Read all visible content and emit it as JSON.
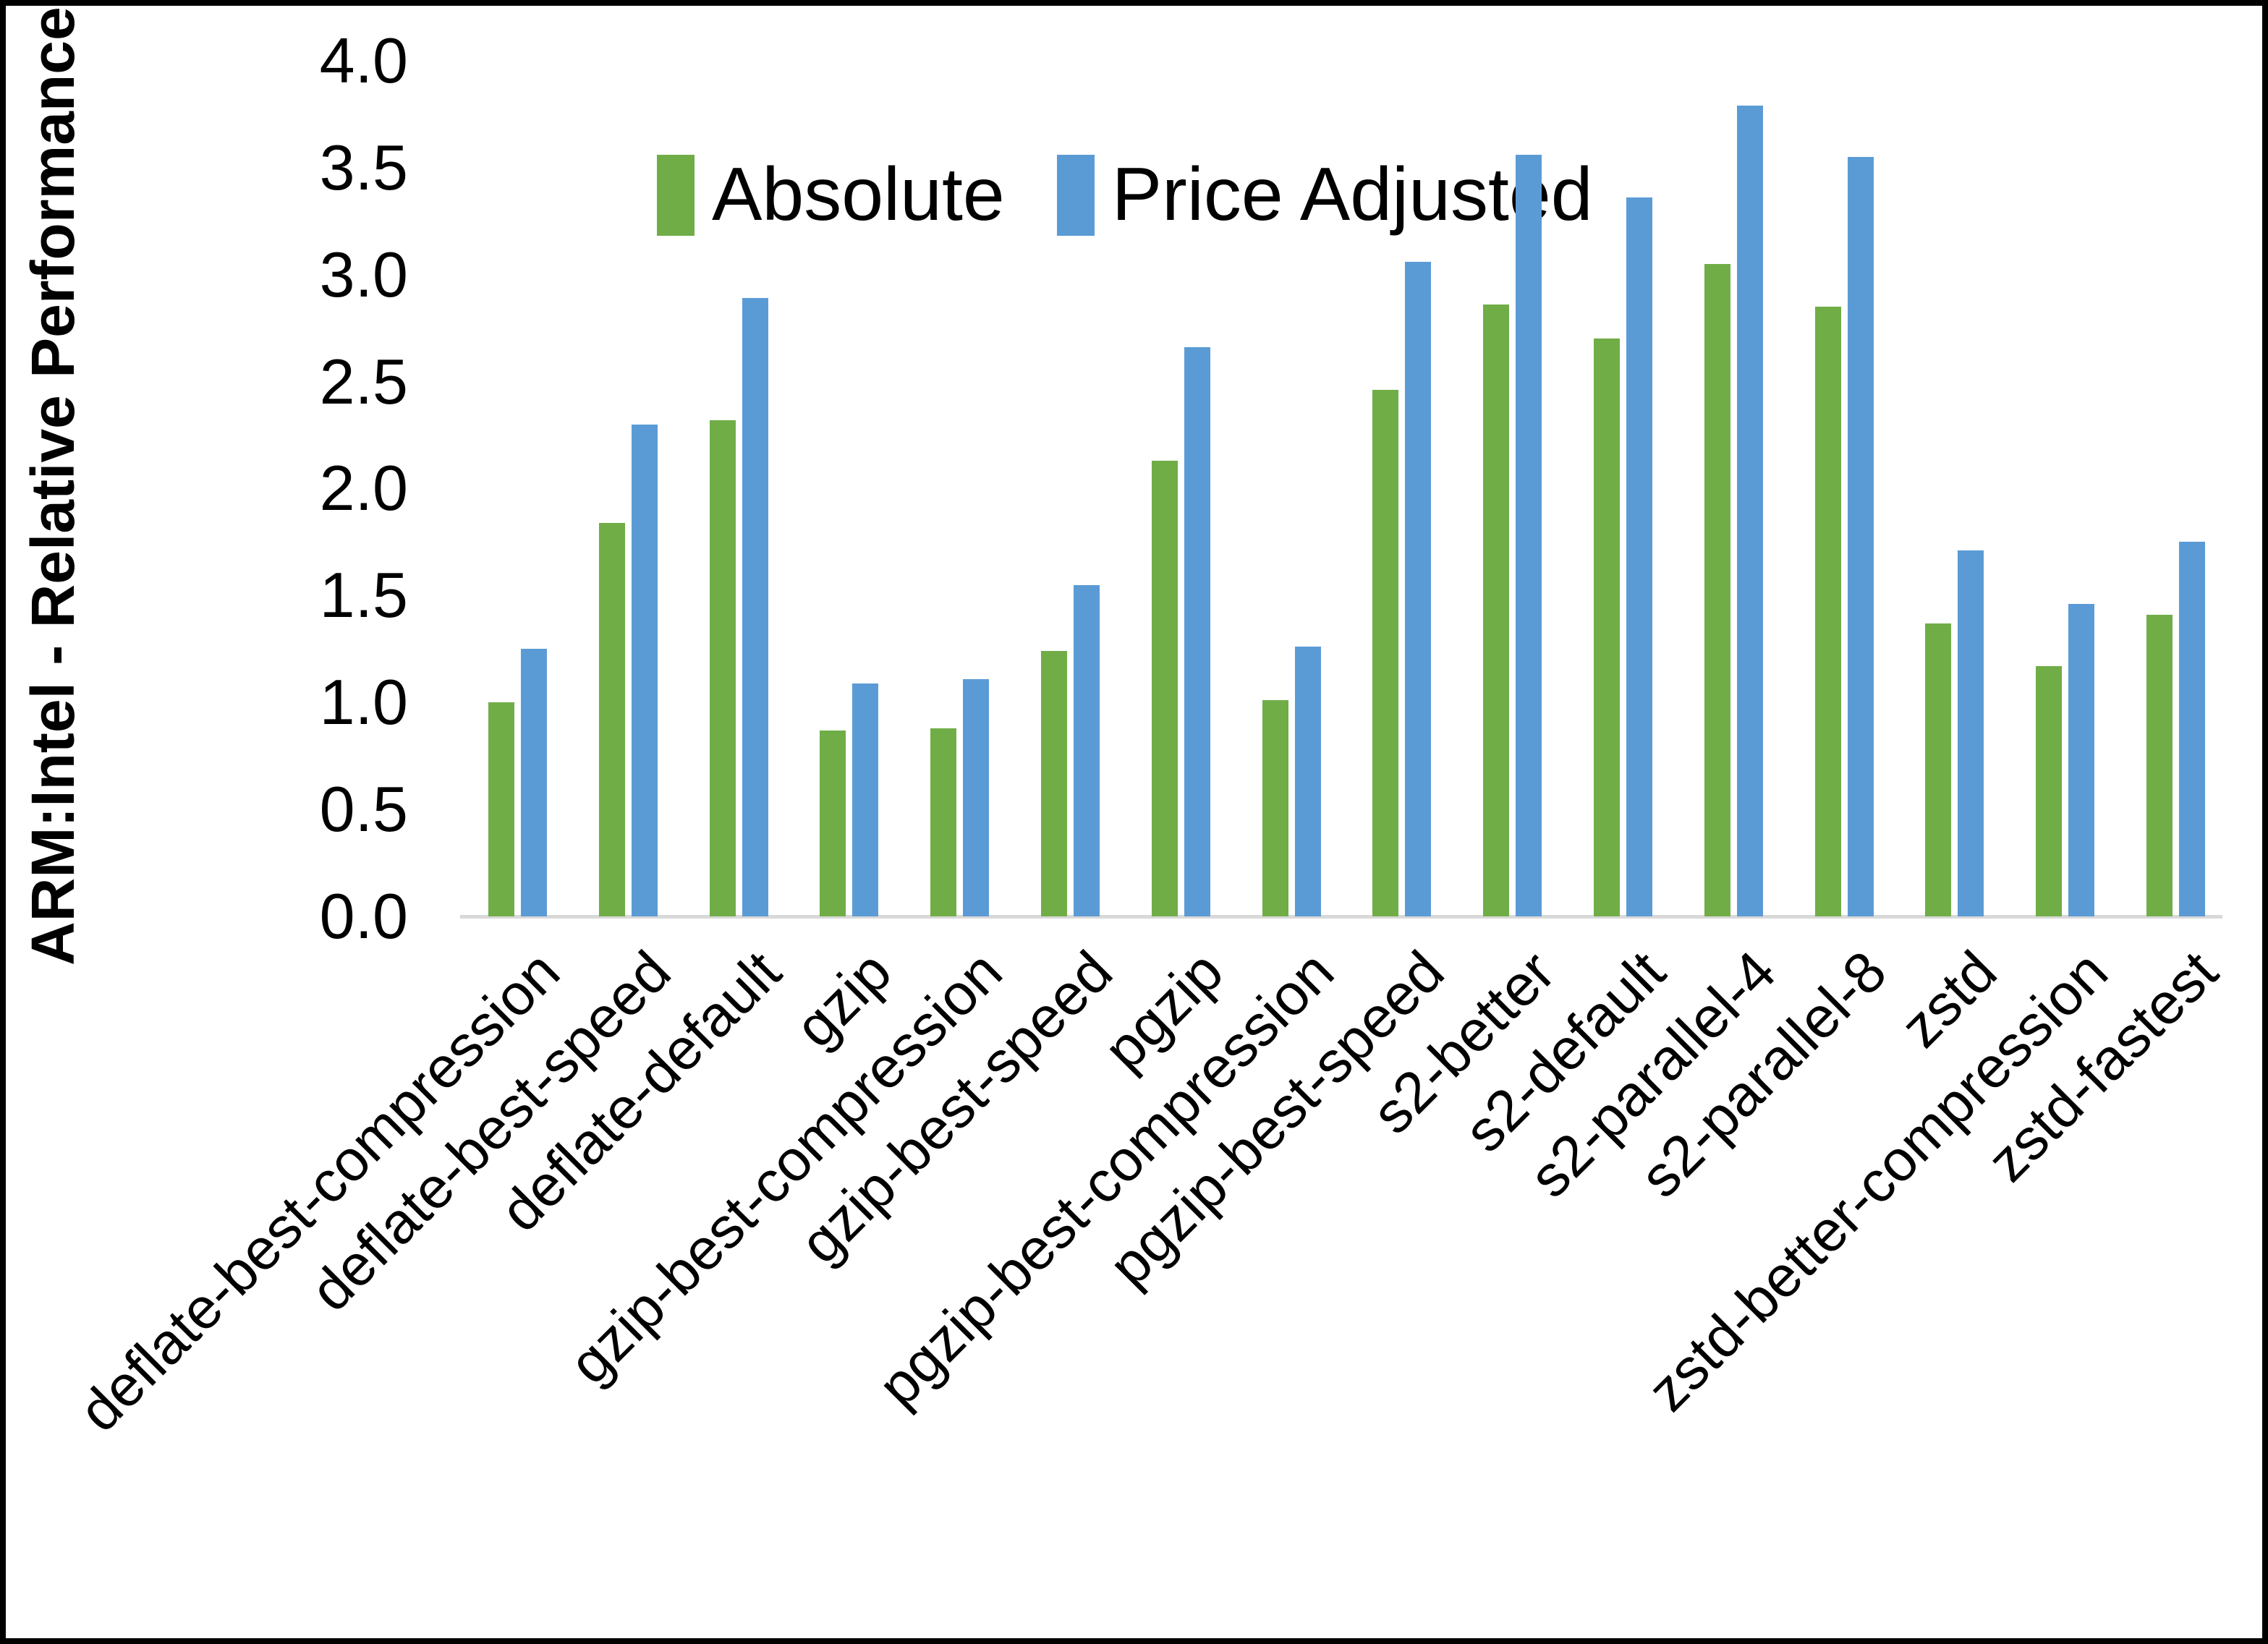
{
  "chart_data": {
    "type": "bar",
    "title": "",
    "ylabel": "ARM:Intel - Relative Performance",
    "xlabel": "",
    "ylim": [
      0.0,
      4.0
    ],
    "ytick_step": 0.5,
    "grid": false,
    "legend_position": "top-center",
    "axis_line_color": "#d9d9d9",
    "categories": [
      "deflate-best-compression",
      "deflate-best-speed",
      "deflate-default",
      "gzip",
      "gzip-best-compression",
      "gzip-best-speed",
      "pgzip",
      "pgzip-best-compression",
      "pgzip-best-speed",
      "s2-better",
      "s2-default",
      "s2-parallel-4",
      "s2-parallel-8",
      "zstd",
      "zstd-better-compression",
      "zstd-fastest"
    ],
    "series": [
      {
        "name": "Absolute",
        "color": "#70AD47",
        "values": [
          1.0,
          1.84,
          2.32,
          0.87,
          0.88,
          1.24,
          2.13,
          1.01,
          2.46,
          2.86,
          2.7,
          3.05,
          2.85,
          1.37,
          1.17,
          1.41
        ]
      },
      {
        "name": "Price Adjusted",
        "color": "#5B9BD5",
        "values": [
          1.25,
          2.3,
          2.89,
          1.09,
          1.11,
          1.55,
          2.66,
          1.26,
          3.06,
          3.56,
          3.36,
          3.79,
          3.55,
          1.71,
          1.46,
          1.75
        ]
      }
    ]
  }
}
